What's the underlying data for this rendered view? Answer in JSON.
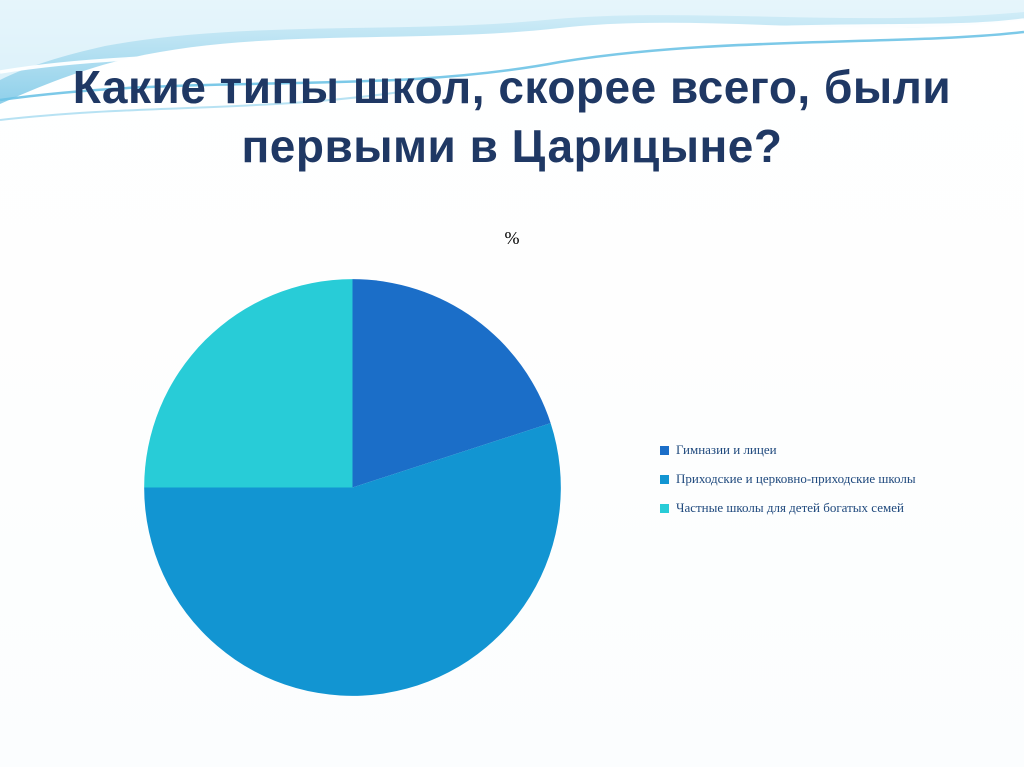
{
  "slide": {
    "title": "Какие типы школ, скорее всего, были первыми в Царицыне?",
    "title_color": "#1f3864",
    "background_color": "#ffffff"
  },
  "chart_data": {
    "type": "pie",
    "title": "%",
    "categories": [
      "Гимназии и лицеи",
      "Приходские и церковно-приходские школы",
      "Частные школы для детей богатых семей"
    ],
    "values": [
      20,
      55,
      25
    ],
    "colors": [
      "#1b6ec8",
      "#1295d2",
      "#28ccd7"
    ],
    "start_angle_deg": 0,
    "direction": "clockwise",
    "legend_position": "right",
    "legend_text_color": "#1f497d"
  },
  "decoration": {
    "wave_band_top": "#cdeaf6",
    "wave_band_bottom": "#8fd0ea",
    "wave_line_white": "#ffffff",
    "wave_line_blue": "#6ec3e6"
  }
}
